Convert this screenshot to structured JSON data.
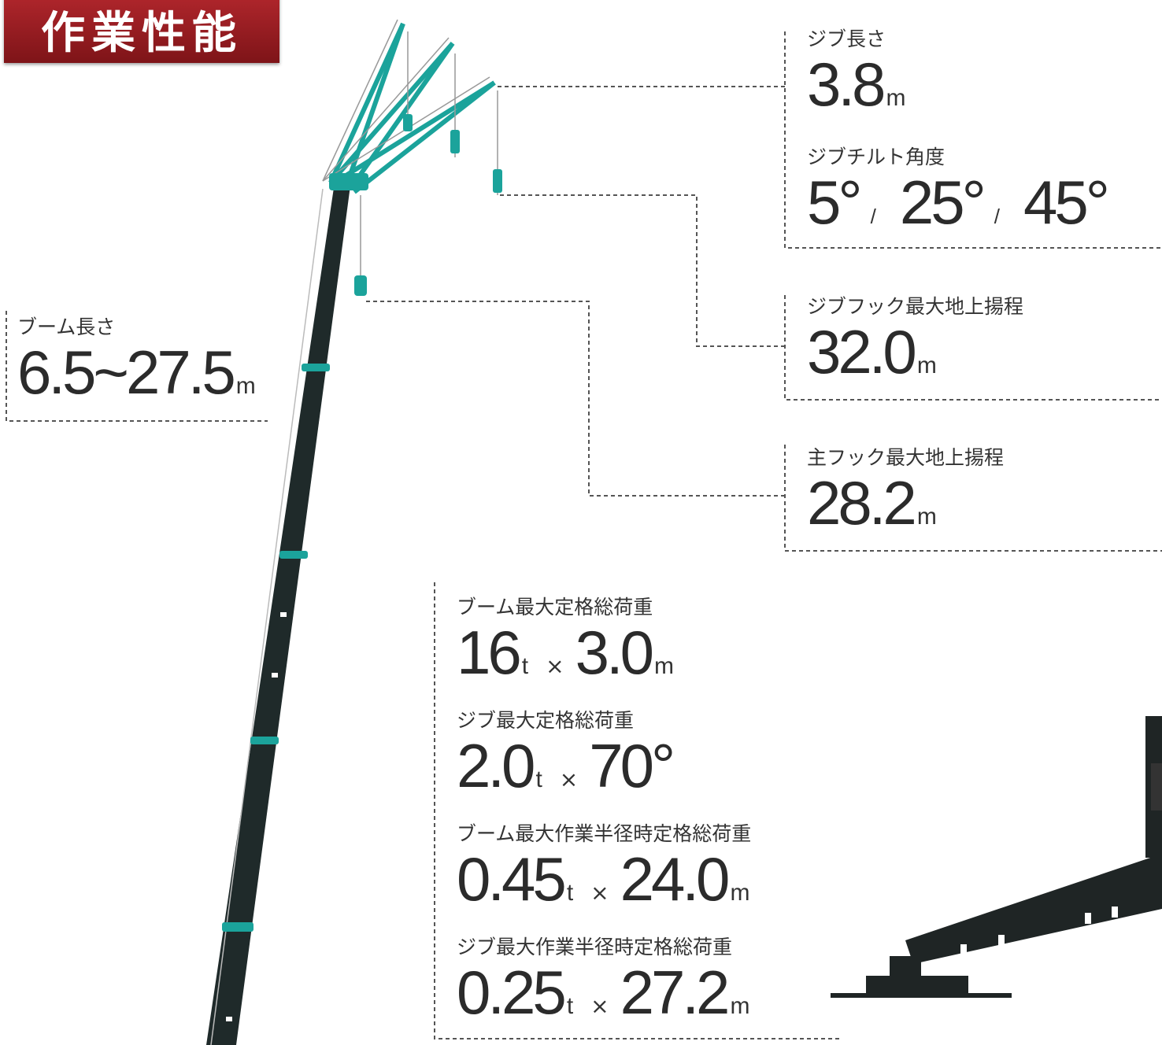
{
  "header": {
    "title": "作業性能"
  },
  "specs": {
    "boom_length": {
      "label": "ブーム長さ",
      "value": "6.5~27.5",
      "unit": "m"
    },
    "jib_length": {
      "label": "ジブ長さ",
      "value": "3.8",
      "unit": "m"
    },
    "jib_tilt": {
      "label": "ジブチルト角度",
      "values": [
        "5°",
        "25°",
        "45°"
      ],
      "separators": [
        "/",
        "/"
      ]
    },
    "jib_hook_height": {
      "label": "ジブフック最大地上揚程",
      "value": "32.0",
      "unit": "m"
    },
    "main_hook_height": {
      "label": "主フック最大地上揚程",
      "value": "28.2",
      "unit": "m"
    },
    "boom_max_load": {
      "label": "ブーム最大定格総荷重",
      "load": "16",
      "load_unit": "t",
      "times": "×",
      "radius": "3.0",
      "radius_unit": "m"
    },
    "jib_max_load": {
      "label": "ジブ最大定格総荷重",
      "load": "2.0",
      "load_unit": "t",
      "times": "×",
      "angle": "70°"
    },
    "boom_max_radius_load": {
      "label": "ブーム最大作業半径時定格総荷重",
      "load": "0.45",
      "load_unit": "t",
      "times": "×",
      "radius": "24.0",
      "radius_unit": "m"
    },
    "jib_max_radius_load": {
      "label": "ジブ最大作業半径時定格総荷重",
      "load": "0.25",
      "load_unit": "t",
      "times": "×",
      "radius": "27.2",
      "radius_unit": "m"
    }
  }
}
